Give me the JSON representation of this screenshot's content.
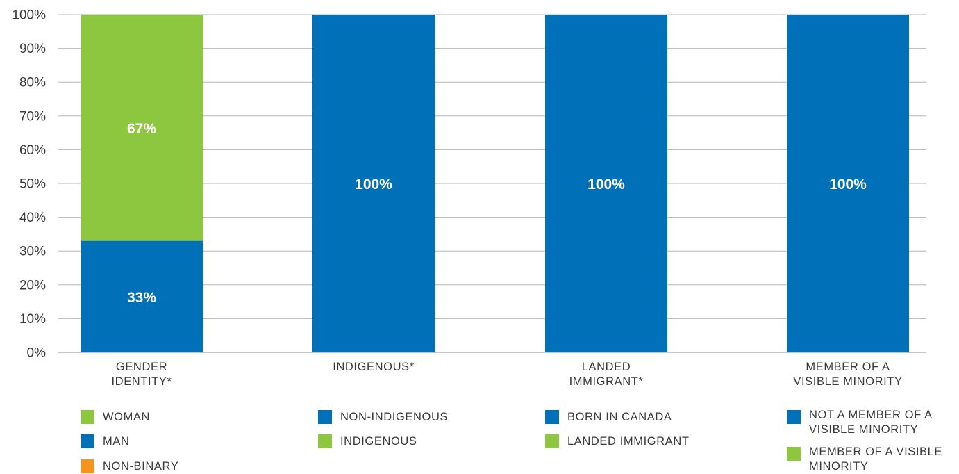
{
  "chart_data": {
    "type": "bar",
    "stacked": true,
    "categories": [
      "GENDER\nIDENTITY*",
      "INDIGENOUS*",
      "LANDED\nIMMIGRANT*",
      "MEMBER OF A\nVISIBLE MINORITY"
    ],
    "ylim": [
      0,
      100
    ],
    "yticks": [
      0,
      10,
      20,
      30,
      40,
      50,
      60,
      70,
      80,
      90,
      100
    ],
    "ytick_labels": [
      "0%",
      "10%",
      "20%",
      "30%",
      "40%",
      "50%",
      "60%",
      "70%",
      "80%",
      "90%",
      "100%"
    ],
    "grid": true,
    "bars": [
      {
        "category": "GENDER\nIDENTITY*",
        "segments": [
          {
            "label": "MAN",
            "value": 33,
            "data_label": "33%",
            "color": "#0070b8"
          },
          {
            "label": "WOMAN",
            "value": 67,
            "data_label": "67%",
            "color": "#8dc63f"
          }
        ]
      },
      {
        "category": "INDIGENOUS*",
        "segments": [
          {
            "label": "NON-INDIGENOUS",
            "value": 100,
            "data_label": "100%",
            "color": "#0070b8"
          }
        ]
      },
      {
        "category": "LANDED\nIMMIGRANT*",
        "segments": [
          {
            "label": "BORN IN CANADA",
            "value": 100,
            "data_label": "100%",
            "color": "#0070b8"
          }
        ]
      },
      {
        "category": "MEMBER OF A\nVISIBLE MINORITY",
        "segments": [
          {
            "label": "NOT A MEMBER OF A VISIBLE MINORITY",
            "value": 100,
            "data_label": "100%",
            "color": "#0070b8"
          }
        ]
      }
    ],
    "legends": [
      [
        {
          "label": "WOMAN",
          "color": "#8dc63f"
        },
        {
          "label": "MAN",
          "color": "#0070b8"
        },
        {
          "label": "NON-BINARY",
          "color": "#f7941d"
        }
      ],
      [
        {
          "label": "NON-INDIGENOUS",
          "color": "#0070b8"
        },
        {
          "label": "INDIGENOUS",
          "color": "#8dc63f"
        }
      ],
      [
        {
          "label": "BORN IN CANADA",
          "color": "#0070b8"
        },
        {
          "label": "LANDED IMMIGRANT",
          "color": "#8dc63f"
        }
      ],
      [
        {
          "label": "NOT A MEMBER OF A\nVISIBLE MINORITY",
          "color": "#0070b8"
        },
        {
          "label": "MEMBER OF A VISIBLE\nMINORITY",
          "color": "#8dc63f"
        }
      ]
    ]
  }
}
